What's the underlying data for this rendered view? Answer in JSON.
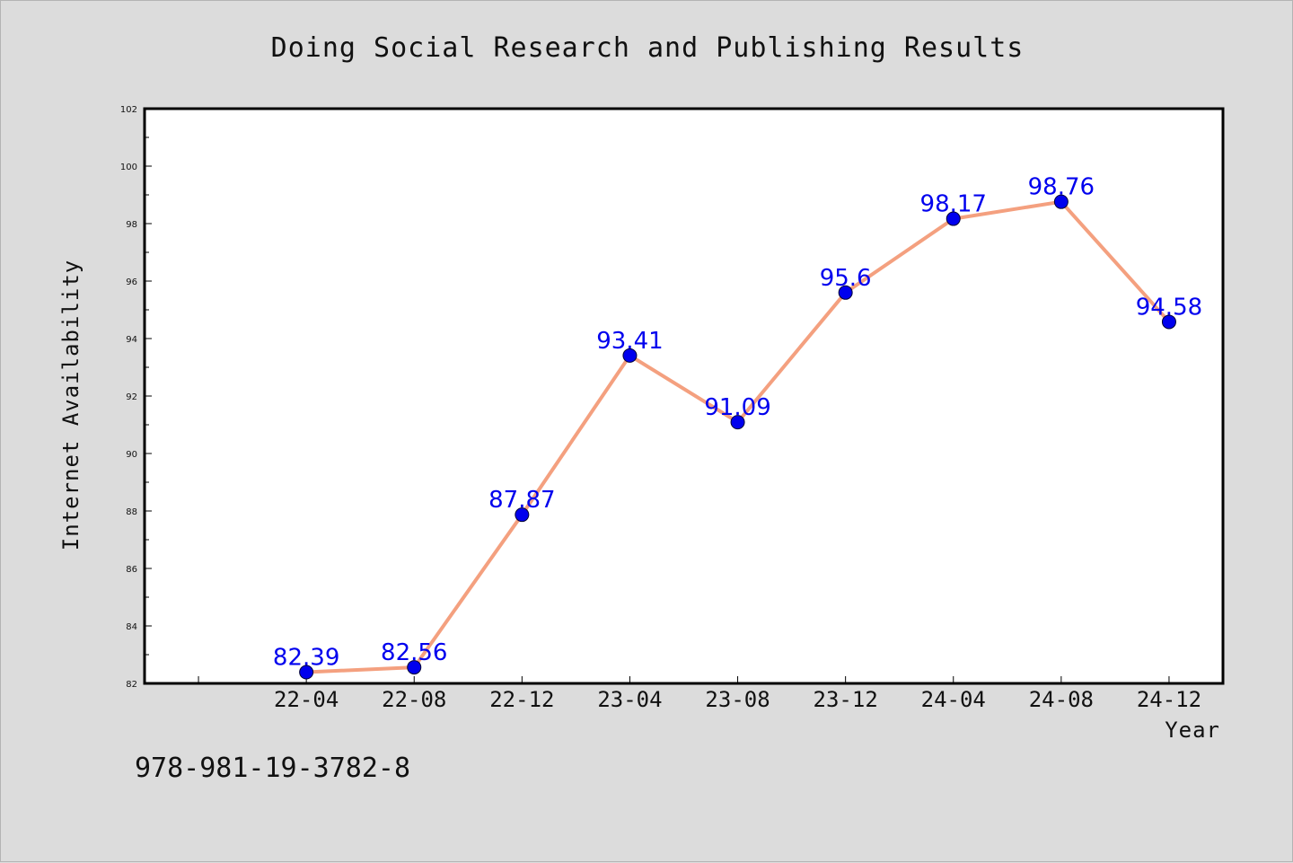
{
  "chart_data": {
    "type": "line",
    "title": "Doing Social Research and Publishing Results",
    "xlabel": "Year",
    "ylabel": "Internet Availability",
    "categories": [
      "22-04",
      "22-08",
      "22-12",
      "23-04",
      "23-08",
      "23-12",
      "24-04",
      "24-08",
      "24-12"
    ],
    "series": [
      {
        "values": [
          82.39,
          82.56,
          87.87,
          93.41,
          91.09,
          95.6,
          98.17,
          98.76,
          94.58
        ],
        "data_labels": [
          "82.39",
          "82.56",
          "87.87",
          "93.41",
          "91.09",
          "95.6",
          "98.17",
          "98.76",
          "94.58"
        ]
      }
    ],
    "ylim": [
      82,
      102
    ],
    "yticks": [
      82,
      84,
      86,
      88,
      90,
      92,
      94,
      96,
      98,
      100,
      102
    ],
    "xlim": [
      -1.5,
      8.5
    ],
    "grid": false,
    "line_color": "#f4a07f",
    "marker_color": "#0000ee",
    "label_color": "#0000ee",
    "annotation": "978-981-19-3782-8"
  }
}
